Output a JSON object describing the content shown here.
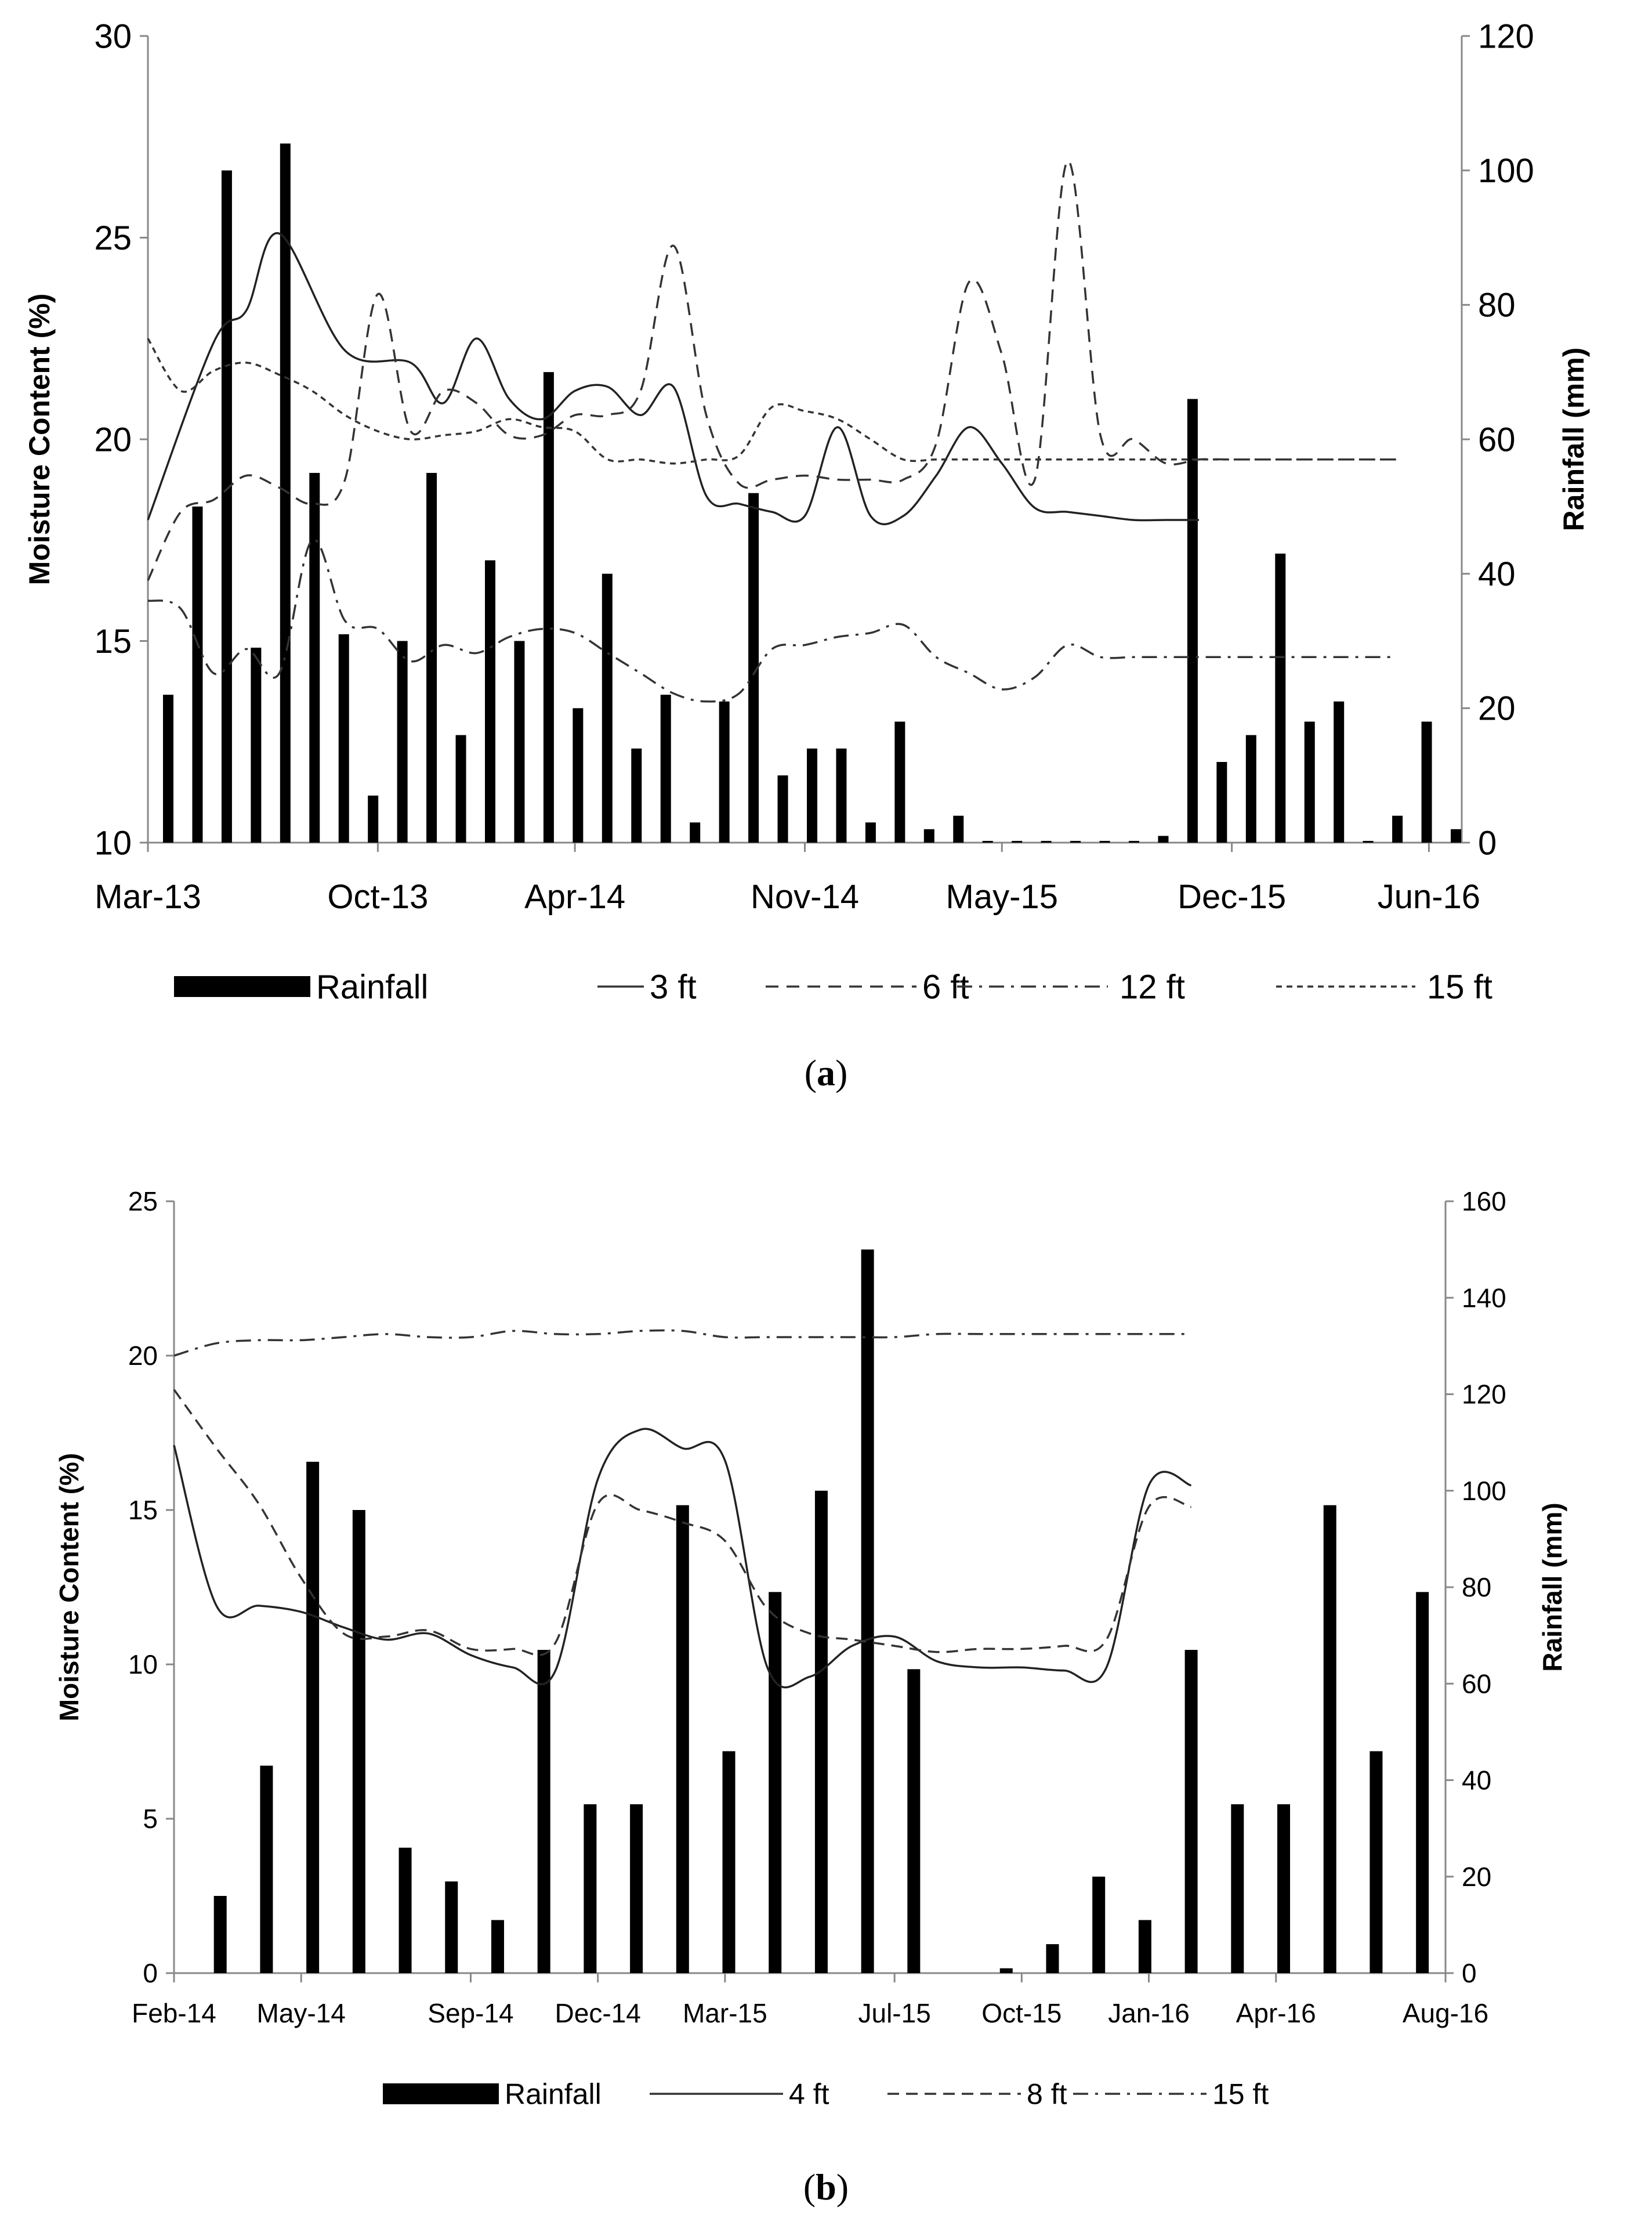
{
  "chart_data": [
    {
      "type": "bar+line",
      "panel_label": "a",
      "ylabel": "Moisture Content (%)",
      "y2label": "Rainfall (mm)",
      "ylim": [
        10,
        30
      ],
      "yticks": [
        "10",
        "15",
        "20",
        "25",
        "30"
      ],
      "y2lim": [
        0,
        120
      ],
      "y2ticks": [
        "0",
        "20",
        "40",
        "60",
        "80",
        "100",
        "120"
      ],
      "xlim": [
        0,
        40
      ],
      "xticks": [
        {
          "label": "Mar-13",
          "x": 0
        },
        {
          "label": "Oct-13",
          "x": 7
        },
        {
          "label": "Apr-14",
          "x": 13
        },
        {
          "label": "Nov-14",
          "x": 20
        },
        {
          "label": "May-15",
          "x": 26
        },
        {
          "label": "Dec-15",
          "x": 33
        },
        {
          "label": "Jun-16",
          "x": 39
        }
      ],
      "rainfall": [
        22,
        50,
        100,
        29,
        104,
        55,
        31,
        7,
        30,
        55,
        16,
        42,
        30,
        70,
        20,
        40,
        14,
        22,
        3,
        21,
        52,
        10,
        14,
        14,
        3,
        18,
        2,
        4,
        0,
        0,
        0,
        0,
        0,
        0,
        1,
        66,
        12,
        16,
        43,
        18,
        21,
        0,
        4,
        18,
        2
      ],
      "rain_x": [
        0,
        1,
        2,
        3,
        4,
        5,
        6,
        7,
        8,
        9,
        10,
        11,
        12,
        13,
        14,
        15,
        16,
        17,
        18,
        19,
        20,
        21,
        22,
        23,
        24,
        25,
        26,
        27,
        28,
        29,
        30,
        31,
        32,
        33,
        34,
        35,
        36,
        37,
        38,
        39,
        40,
        41,
        42,
        43,
        44
      ],
      "legend": [
        "Rainfall",
        "3 ft",
        "6 ft",
        "12 ft",
        "15 ft"
      ],
      "series": [
        {
          "name": "3 ft",
          "x": [
            0,
            2,
            3,
            4,
            6,
            8,
            9,
            10,
            11,
            12,
            13,
            14,
            15,
            16,
            17,
            18,
            19,
            20,
            21,
            22,
            23,
            24,
            25,
            26,
            27,
            28,
            29,
            30,
            31,
            32
          ],
          "values": [
            18.0,
            22.4,
            23.2,
            25.1,
            22.2,
            21.9,
            20.9,
            22.5,
            21.0,
            20.5,
            21.2,
            21.3,
            20.6,
            21.3,
            18.6,
            18.4,
            18.2,
            18.1,
            20.3,
            18.1,
            18.1,
            19.1,
            20.3,
            19.4,
            18.3,
            18.2,
            18.1,
            18.0,
            18.0,
            18.0
          ]
        },
        {
          "name": "6 ft",
          "x": [
            0,
            1,
            2,
            3,
            4,
            5,
            6,
            7,
            8,
            9,
            10,
            11,
            12,
            13,
            14,
            15,
            16,
            17,
            18,
            19,
            20,
            21,
            22,
            23,
            24,
            25,
            26,
            27,
            28,
            29,
            30,
            31,
            32,
            33,
            34,
            35,
            36,
            37,
            38
          ],
          "values": [
            16.5,
            18.2,
            18.5,
            19.1,
            18.8,
            18.4,
            19.0,
            23.6,
            20.2,
            21.2,
            20.9,
            20.1,
            20.1,
            20.6,
            20.6,
            21.2,
            24.8,
            20.6,
            18.9,
            19.0,
            19.1,
            19.0,
            19.0,
            19.0,
            19.9,
            23.9,
            22.1,
            19.0,
            26.9,
            20.1,
            20.0,
            19.4,
            19.5,
            19.5,
            19.5,
            19.5,
            19.5,
            19.5,
            19.5
          ]
        },
        {
          "name": "12 ft",
          "x": [
            0,
            1,
            2,
            3,
            4,
            5,
            6,
            7,
            8,
            9,
            10,
            11,
            12,
            13,
            14,
            15,
            16,
            17,
            18,
            19,
            20,
            21,
            22,
            23,
            24,
            25,
            26,
            27,
            28,
            29,
            30,
            31,
            32,
            33,
            34,
            35,
            36,
            37,
            38
          ],
          "values": [
            16.0,
            15.8,
            14.2,
            14.8,
            14.2,
            17.5,
            15.5,
            15.3,
            14.5,
            14.9,
            14.7,
            15.1,
            15.3,
            15.2,
            14.7,
            14.2,
            13.7,
            13.5,
            13.7,
            14.8,
            14.9,
            15.1,
            15.2,
            15.4,
            14.6,
            14.2,
            13.8,
            14.1,
            14.9,
            14.6,
            14.6,
            14.6,
            14.6,
            14.6,
            14.6,
            14.6,
            14.6,
            14.6,
            14.6
          ]
        },
        {
          "name": "15 ft",
          "x": [
            0,
            1,
            2,
            3,
            4,
            5,
            6,
            7,
            8,
            9,
            10,
            11,
            12,
            13,
            14,
            15,
            16,
            17,
            18,
            19,
            20,
            21,
            22,
            23,
            24,
            25,
            26,
            27,
            28,
            29,
            30,
            31,
            32,
            33,
            34,
            35,
            36,
            37,
            38
          ],
          "values": [
            22.5,
            21.2,
            21.7,
            21.9,
            21.6,
            21.2,
            20.6,
            20.2,
            20.0,
            20.1,
            20.2,
            20.5,
            20.3,
            20.2,
            19.5,
            19.5,
            19.4,
            19.5,
            19.6,
            20.8,
            20.7,
            20.5,
            20.0,
            19.5,
            19.5,
            19.5,
            19.5,
            19.5,
            19.5,
            19.5,
            19.5,
            19.5,
            19.5,
            19.5,
            19.5,
            19.5,
            19.5,
            19.5,
            19.5
          ]
        }
      ]
    },
    {
      "type": "bar+line",
      "panel_label": "b",
      "ylabel": "Moisture Content (%)",
      "y2label": "Rainfall (mm)",
      "ylim": [
        0,
        25
      ],
      "yticks": [
        "0",
        "5",
        "10",
        "15",
        "20",
        "25"
      ],
      "y2lim": [
        0,
        160
      ],
      "y2ticks": [
        "0",
        "20",
        "40",
        "60",
        "80",
        "100",
        "120",
        "140",
        "160"
      ],
      "xlim": [
        0,
        30
      ],
      "xticks": [
        {
          "label": "Feb-14",
          "x": 0
        },
        {
          "label": "May-14",
          "x": 3
        },
        {
          "label": "Sep-14",
          "x": 7
        },
        {
          "label": "Dec-14",
          "x": 10
        },
        {
          "label": "Mar-15",
          "x": 13
        },
        {
          "label": "Jul-15",
          "x": 17
        },
        {
          "label": "Oct-15",
          "x": 20
        },
        {
          "label": "Jan-16",
          "x": 23
        },
        {
          "label": "Apr-16",
          "x": 26
        },
        {
          "label": "Aug-16",
          "x": 30
        }
      ],
      "rainfall": [
        16,
        43,
        106,
        96,
        26,
        19,
        11,
        67,
        35,
        35,
        97,
        46,
        79,
        100,
        150,
        63,
        1,
        6,
        20,
        11,
        67,
        35,
        35,
        97,
        46,
        79
      ],
      "rain_x": [
        0.5,
        1.5,
        2.5,
        3.5,
        4.5,
        5.5,
        6.5,
        7.5,
        8.5,
        9.5,
        10.5,
        11.5,
        12.5,
        13.5,
        14.5,
        15.5,
        17.5,
        18.5,
        19.5,
        20.5,
        21.5,
        22.5,
        23.5,
        24.5,
        25.5,
        26.5
      ],
      "legend": [
        "Rainfall",
        "4 ft",
        "8 ft",
        "15 ft"
      ],
      "series": [
        {
          "name": "4 ft",
          "x": [
            0,
            1,
            2,
            3,
            4,
            5,
            6,
            7,
            8,
            9,
            10,
            11,
            12,
            13,
            14,
            15,
            16,
            17,
            18,
            19,
            20,
            21,
            22,
            23,
            24
          ],
          "values": [
            17.1,
            11.9,
            11.9,
            11.7,
            11.2,
            10.8,
            11.0,
            10.3,
            9.9,
            9.8,
            16.0,
            17.6,
            17.0,
            16.6,
            9.9,
            9.6,
            10.6,
            10.9,
            10.1,
            9.9,
            9.9,
            9.8,
            9.9,
            15.8,
            15.8
          ]
        },
        {
          "name": "8 ft",
          "x": [
            0,
            1,
            2,
            3,
            4,
            5,
            6,
            7,
            8,
            9,
            10,
            11,
            12,
            13,
            14,
            15,
            16,
            17,
            18,
            19,
            20,
            21,
            22,
            23,
            24
          ],
          "values": [
            18.9,
            17.0,
            15.2,
            12.8,
            11.0,
            10.9,
            11.1,
            10.5,
            10.5,
            10.7,
            15.2,
            15.0,
            14.6,
            14.0,
            11.8,
            11.0,
            10.8,
            10.6,
            10.4,
            10.5,
            10.5,
            10.6,
            10.8,
            15.1,
            15.1
          ]
        },
        {
          "name": "15 ft",
          "x": [
            0,
            1,
            2,
            3,
            4,
            5,
            6,
            7,
            8,
            9,
            10,
            11,
            12,
            13,
            14,
            15,
            16,
            17,
            18,
            19,
            20,
            21,
            22,
            23,
            24
          ],
          "values": [
            20.0,
            20.4,
            20.5,
            20.5,
            20.6,
            20.7,
            20.6,
            20.6,
            20.8,
            20.7,
            20.7,
            20.8,
            20.8,
            20.6,
            20.6,
            20.6,
            20.6,
            20.6,
            20.7,
            20.7,
            20.7,
            20.7,
            20.7,
            20.7,
            20.7
          ]
        }
      ]
    }
  ]
}
